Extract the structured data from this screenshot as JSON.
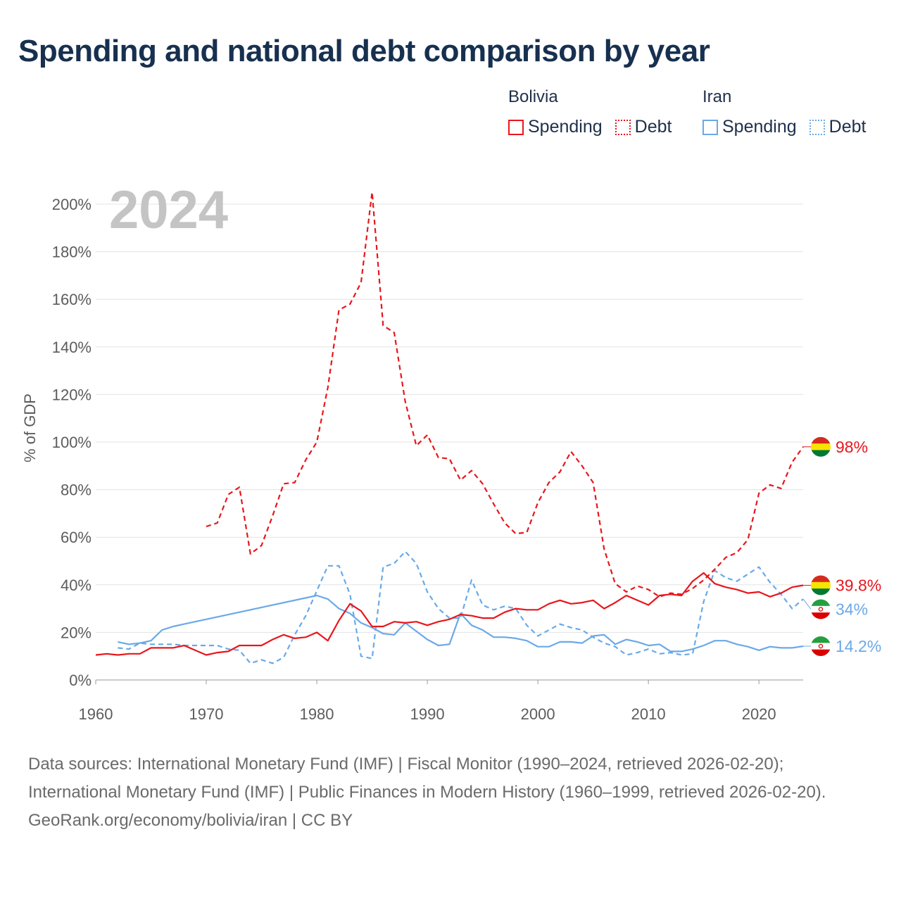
{
  "title": "Spending and national debt comparison by year",
  "legend": {
    "groups": [
      {
        "country": "Bolivia",
        "color": "#e8161c",
        "items": [
          {
            "label": "Spending",
            "style": "solid"
          },
          {
            "label": "Debt",
            "style": "dotted"
          }
        ]
      },
      {
        "country": "Iran",
        "color": "#6aa9e8",
        "items": [
          {
            "label": "Spending",
            "style": "solid"
          },
          {
            "label": "Debt",
            "style": "dotted"
          }
        ]
      }
    ]
  },
  "chart_data": {
    "type": "line",
    "year_label": "2024",
    "ylabel": "% of GDP",
    "xlabel": "",
    "xlim": [
      1960,
      2024
    ],
    "ylim": [
      0,
      200
    ],
    "x_ticks": [
      1960,
      1970,
      1980,
      1990,
      2000,
      2010,
      2020
    ],
    "y_ticks": [
      0,
      20,
      40,
      60,
      80,
      100,
      120,
      140,
      160,
      180,
      200
    ],
    "y_tick_labels": [
      "0%",
      "20%",
      "40%",
      "60%",
      "80%",
      "100%",
      "120%",
      "140%",
      "160%",
      "180%",
      "200%"
    ],
    "grid": true,
    "series": [
      {
        "name": "Bolivia Debt",
        "country": "Bolivia",
        "metric": "Debt",
        "color": "#e8161c",
        "dash": "dashed",
        "end_label": "98%",
        "flag": "bolivia",
        "points": [
          [
            1970,
            64.5
          ],
          [
            1971,
            66
          ],
          [
            1972,
            78
          ],
          [
            1973,
            81
          ],
          [
            1974,
            53
          ],
          [
            1975,
            56.5
          ],
          [
            1976,
            69
          ],
          [
            1977,
            82.5
          ],
          [
            1978,
            83
          ],
          [
            1979,
            92.5
          ],
          [
            1980,
            100
          ],
          [
            1981,
            123
          ],
          [
            1982,
            155.5
          ],
          [
            1983,
            158
          ],
          [
            1984,
            167
          ],
          [
            1985,
            205
          ],
          [
            1986,
            149
          ],
          [
            1987,
            146
          ],
          [
            1988,
            117
          ],
          [
            1989,
            98.5
          ],
          [
            1990,
            103
          ],
          [
            1991,
            93.5
          ],
          [
            1992,
            93
          ],
          [
            1993,
            84
          ],
          [
            1994,
            88
          ],
          [
            1995,
            82.5
          ],
          [
            1996,
            74
          ],
          [
            1997,
            66
          ],
          [
            1998,
            61.5
          ],
          [
            1999,
            62
          ],
          [
            2000,
            74.5
          ],
          [
            2001,
            83
          ],
          [
            2002,
            87.5
          ],
          [
            2003,
            96
          ],
          [
            2004,
            90
          ],
          [
            2005,
            83
          ],
          [
            2006,
            55
          ],
          [
            2007,
            40.5
          ],
          [
            2008,
            37
          ],
          [
            2009,
            39.5
          ],
          [
            2010,
            38
          ],
          [
            2011,
            35
          ],
          [
            2012,
            36.5
          ],
          [
            2013,
            36
          ],
          [
            2014,
            38.5
          ],
          [
            2015,
            42
          ],
          [
            2016,
            46.5
          ],
          [
            2017,
            51.5
          ],
          [
            2018,
            53.5
          ],
          [
            2019,
            59
          ],
          [
            2020,
            78.5
          ],
          [
            2021,
            82
          ],
          [
            2022,
            80.5
          ],
          [
            2023,
            91.5
          ],
          [
            2024,
            98
          ]
        ]
      },
      {
        "name": "Bolivia Spending",
        "country": "Bolivia",
        "metric": "Spending",
        "color": "#e8161c",
        "dash": "solid",
        "end_label": "39.8%",
        "flag": "bolivia",
        "points": [
          [
            1960,
            10.5
          ],
          [
            1961,
            11
          ],
          [
            1962,
            10.5
          ],
          [
            1963,
            11
          ],
          [
            1964,
            11
          ],
          [
            1965,
            13.5
          ],
          [
            1966,
            13.5
          ],
          [
            1967,
            13.5
          ],
          [
            1968,
            14.5
          ],
          [
            1969,
            12.5
          ],
          [
            1970,
            10.5
          ],
          [
            1971,
            11.5
          ],
          [
            1972,
            12
          ],
          [
            1973,
            14.5
          ],
          [
            1974,
            14.5
          ],
          [
            1975,
            14.5
          ],
          [
            1976,
            17
          ],
          [
            1977,
            19
          ],
          [
            1978,
            17.5
          ],
          [
            1979,
            18
          ],
          [
            1980,
            20
          ],
          [
            1981,
            16.5
          ],
          [
            1982,
            25
          ],
          [
            1983,
            32
          ],
          [
            1984,
            29
          ],
          [
            1985,
            22.5
          ],
          [
            1986,
            22.5
          ],
          [
            1987,
            24.5
          ],
          [
            1988,
            24
          ],
          [
            1989,
            24.5
          ],
          [
            1990,
            23
          ],
          [
            1991,
            24.5
          ],
          [
            1992,
            25.5
          ],
          [
            1993,
            27.5
          ],
          [
            1994,
            27
          ],
          [
            1995,
            26
          ],
          [
            1996,
            26
          ],
          [
            1997,
            28.5
          ],
          [
            1998,
            30
          ],
          [
            1999,
            29.5
          ],
          [
            2000,
            29.5
          ],
          [
            2001,
            32
          ],
          [
            2002,
            33.5
          ],
          [
            2003,
            32
          ],
          [
            2004,
            32.5
          ],
          [
            2005,
            33.5
          ],
          [
            2006,
            30
          ],
          [
            2007,
            32.5
          ],
          [
            2008,
            35.5
          ],
          [
            2009,
            33.5
          ],
          [
            2010,
            31.5
          ],
          [
            2011,
            35.5
          ],
          [
            2012,
            36
          ],
          [
            2013,
            35.5
          ],
          [
            2014,
            41.5
          ],
          [
            2015,
            45
          ],
          [
            2016,
            40.5
          ],
          [
            2017,
            39
          ],
          [
            2018,
            38
          ],
          [
            2019,
            36.5
          ],
          [
            2020,
            37
          ],
          [
            2021,
            35
          ],
          [
            2022,
            36.5
          ],
          [
            2023,
            39
          ],
          [
            2024,
            39.8
          ]
        ]
      },
      {
        "name": "Iran Debt",
        "country": "Iran",
        "metric": "Debt",
        "color": "#6aa9e8",
        "dash": "dashed",
        "end_label": "34%",
        "flag": "iran",
        "points": [
          [
            1962,
            13.5
          ],
          [
            1963,
            13
          ],
          [
            1964,
            15.5
          ],
          [
            1965,
            15
          ],
          [
            1966,
            15
          ],
          [
            1967,
            15
          ],
          [
            1968,
            14.5
          ],
          [
            1969,
            14.5
          ],
          [
            1970,
            14.5
          ],
          [
            1971,
            14.5
          ],
          [
            1972,
            13
          ],
          [
            1973,
            12.5
          ],
          [
            1974,
            7
          ],
          [
            1975,
            8.5
          ],
          [
            1976,
            7
          ],
          [
            1977,
            9.5
          ],
          [
            1978,
            19
          ],
          [
            1979,
            27
          ],
          [
            1980,
            37.5
          ],
          [
            1981,
            48
          ],
          [
            1982,
            48
          ],
          [
            1983,
            36
          ],
          [
            1984,
            10
          ],
          [
            1985,
            9
          ],
          [
            1986,
            47.5
          ],
          [
            1987,
            49
          ],
          [
            1988,
            54
          ],
          [
            1989,
            49
          ],
          [
            1990,
            37
          ],
          [
            1991,
            30
          ],
          [
            1992,
            26
          ],
          [
            1993,
            26
          ],
          [
            1994,
            42
          ],
          [
            1995,
            31.5
          ],
          [
            1996,
            29.5
          ],
          [
            1997,
            31
          ],
          [
            1998,
            30
          ],
          [
            1999,
            23
          ],
          [
            2000,
            18.5
          ],
          [
            2001,
            21
          ],
          [
            2002,
            23.5
          ],
          [
            2003,
            22
          ],
          [
            2004,
            21
          ],
          [
            2005,
            18
          ],
          [
            2006,
            15.5
          ],
          [
            2007,
            14
          ],
          [
            2008,
            10.5
          ],
          [
            2009,
            11.5
          ],
          [
            2010,
            13
          ],
          [
            2011,
            11
          ],
          [
            2012,
            11.5
          ],
          [
            2013,
            10.5
          ],
          [
            2014,
            11
          ],
          [
            2015,
            33
          ],
          [
            2016,
            46
          ],
          [
            2017,
            43
          ],
          [
            2018,
            41.5
          ],
          [
            2019,
            44.5
          ],
          [
            2020,
            47.5
          ],
          [
            2021,
            41
          ],
          [
            2022,
            36
          ],
          [
            2023,
            30
          ],
          [
            2024,
            34
          ]
        ]
      },
      {
        "name": "Iran Spending",
        "country": "Iran",
        "metric": "Spending",
        "color": "#6aa9e8",
        "dash": "solid",
        "end_label": "14.2%",
        "flag": "iran",
        "points": [
          [
            1962,
            16
          ],
          [
            1963,
            15
          ],
          [
            1964,
            15.5
          ],
          [
            1965,
            16.5
          ],
          [
            1966,
            21
          ],
          [
            1967,
            22.5
          ],
          [
            1968,
            23.5
          ],
          [
            1969,
            24.5
          ],
          [
            1970,
            25.5
          ],
          [
            1975,
            30.5
          ],
          [
            1980,
            35.5
          ],
          [
            1981,
            34
          ],
          [
            1982,
            30
          ],
          [
            1983,
            28
          ],
          [
            1984,
            24
          ],
          [
            1985,
            22
          ],
          [
            1986,
            19.5
          ],
          [
            1987,
            19
          ],
          [
            1988,
            24
          ],
          [
            1989,
            20.5
          ],
          [
            1990,
            17
          ],
          [
            1991,
            14.5
          ],
          [
            1992,
            15
          ],
          [
            1993,
            28
          ],
          [
            1994,
            23
          ],
          [
            1995,
            21
          ],
          [
            1996,
            18
          ],
          [
            1997,
            18
          ],
          [
            1998,
            17.5
          ],
          [
            1999,
            16.5
          ],
          [
            2000,
            14
          ],
          [
            2001,
            14
          ],
          [
            2002,
            16
          ],
          [
            2003,
            16
          ],
          [
            2004,
            15.5
          ],
          [
            2005,
            18.5
          ],
          [
            2006,
            19
          ],
          [
            2007,
            15
          ],
          [
            2008,
            17
          ],
          [
            2009,
            16
          ],
          [
            2010,
            14.5
          ],
          [
            2011,
            15
          ],
          [
            2012,
            12
          ],
          [
            2013,
            12
          ],
          [
            2014,
            13
          ],
          [
            2015,
            14.5
          ],
          [
            2016,
            16.5
          ],
          [
            2017,
            16.5
          ],
          [
            2018,
            15
          ],
          [
            2019,
            14
          ],
          [
            2020,
            12.5
          ],
          [
            2021,
            14
          ],
          [
            2022,
            13.5
          ],
          [
            2023,
            13.5
          ],
          [
            2024,
            14.2
          ]
        ]
      }
    ]
  },
  "footer": {
    "sources": "Data sources: International Monetary Fund (IMF) | Fiscal Monitor (1990–2024, retrieved 2026-02-20); International Monetary Fund (IMF) | Public Finances in Modern History (1960–1999, retrieved 2026-02-20).",
    "credit": "GeoRank.org/economy/bolivia/iran | CC BY"
  }
}
